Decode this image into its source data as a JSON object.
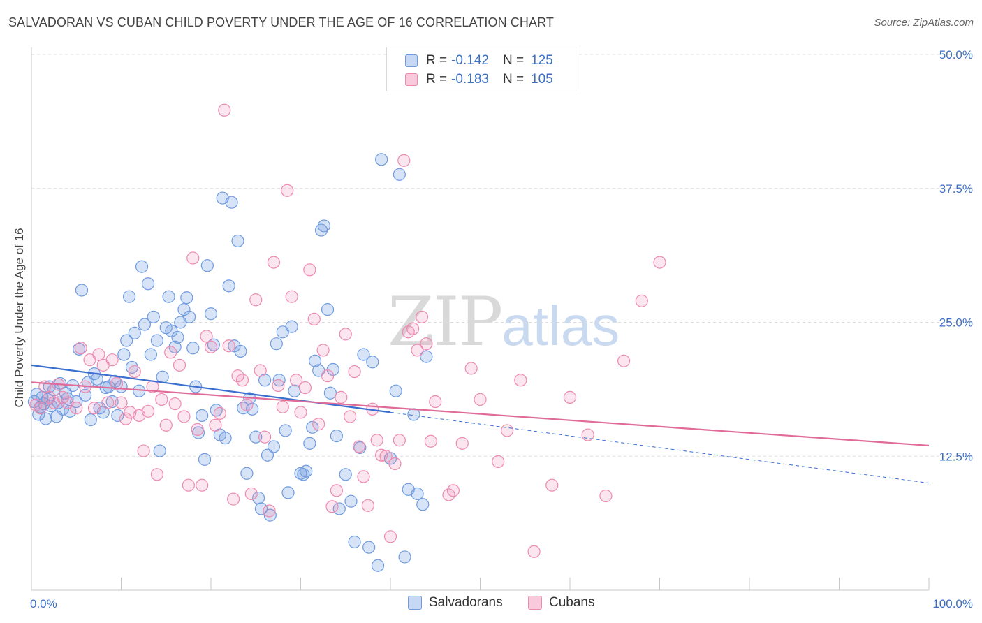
{
  "title": "SALVADORAN VS CUBAN CHILD POVERTY UNDER THE AGE OF 16 CORRELATION CHART",
  "source": "Source: ZipAtlas.com",
  "watermark": {
    "zip": "ZIP",
    "atlas": "atlas"
  },
  "legend": {
    "r_label": "R =",
    "n_label": "N =",
    "rows": [
      {
        "r": "-0.142",
        "n": "125",
        "color": "#6f9be0"
      },
      {
        "r": "-0.183",
        "n": "105",
        "color": "#ee8ab0"
      }
    ]
  },
  "chart_data": {
    "type": "scatter",
    "title": "SALVADORAN VS CUBAN CHILD POVERTY UNDER THE AGE OF 16 CORRELATION CHART",
    "xlabel": "",
    "ylabel": "Child Poverty Under the Age of 16",
    "xlim": [
      0,
      100
    ],
    "ylim": [
      0,
      50
    ],
    "x_tick_labels": [
      "0.0%",
      "100.0%"
    ],
    "y_ticks": [
      12.5,
      25.0,
      37.5,
      50.0
    ],
    "y_tick_labels": [
      "12.5%",
      "25.0%",
      "37.5%",
      "50.0%"
    ],
    "grid": true,
    "legend_position": "top-center",
    "series": [
      {
        "name": "Salvadorans",
        "color": "#6f9be0",
        "trend": {
          "x": [
            0,
            40
          ],
          "y": [
            21.0,
            16.6
          ],
          "dashed_to": [
            100,
            10.0
          ]
        },
        "points": [
          [
            0.3,
            17.6
          ],
          [
            0.6,
            18.3
          ],
          [
            0.8,
            16.4
          ],
          [
            1.0,
            17.1
          ],
          [
            1.2,
            18.0
          ],
          [
            1.4,
            17.4
          ],
          [
            1.6,
            16.0
          ],
          [
            1.8,
            17.8
          ],
          [
            2.0,
            19.0
          ],
          [
            2.2,
            17.2
          ],
          [
            2.5,
            18.7
          ],
          [
            2.8,
            16.2
          ],
          [
            3.0,
            17.5
          ],
          [
            3.2,
            19.3
          ],
          [
            3.5,
            16.9
          ],
          [
            3.8,
            18.4
          ],
          [
            4.0,
            17.9
          ],
          [
            4.3,
            16.7
          ],
          [
            4.6,
            19.1
          ],
          [
            5.0,
            17.6
          ],
          [
            5.3,
            22.5
          ],
          [
            5.6,
            28.0
          ],
          [
            6.0,
            18.2
          ],
          [
            6.3,
            19.4
          ],
          [
            6.6,
            15.9
          ],
          [
            7.0,
            20.2
          ],
          [
            7.3,
            19.7
          ],
          [
            7.6,
            17.0
          ],
          [
            8.0,
            16.6
          ],
          [
            8.3,
            18.9
          ],
          [
            8.6,
            19.0
          ],
          [
            9.0,
            17.6
          ],
          [
            9.3,
            19.5
          ],
          [
            9.6,
            16.3
          ],
          [
            10.0,
            19.0
          ],
          [
            10.3,
            22.0
          ],
          [
            10.6,
            23.3
          ],
          [
            10.9,
            27.4
          ],
          [
            11.2,
            20.8
          ],
          [
            11.5,
            24.0
          ],
          [
            12.0,
            18.6
          ],
          [
            12.3,
            30.2
          ],
          [
            12.6,
            24.8
          ],
          [
            13.0,
            28.6
          ],
          [
            13.3,
            22.0
          ],
          [
            13.6,
            25.5
          ],
          [
            14.0,
            23.3
          ],
          [
            14.3,
            13.0
          ],
          [
            14.6,
            19.9
          ],
          [
            15.0,
            24.5
          ],
          [
            15.3,
            27.4
          ],
          [
            15.6,
            24.2
          ],
          [
            16.0,
            22.7
          ],
          [
            16.3,
            23.6
          ],
          [
            16.6,
            25.0
          ],
          [
            17.0,
            26.2
          ],
          [
            17.3,
            27.3
          ],
          [
            17.6,
            25.5
          ],
          [
            18.0,
            22.6
          ],
          [
            18.3,
            19.0
          ],
          [
            18.6,
            14.7
          ],
          [
            19.0,
            16.3
          ],
          [
            19.3,
            12.2
          ],
          [
            19.6,
            30.3
          ],
          [
            20.0,
            25.8
          ],
          [
            20.3,
            22.9
          ],
          [
            20.6,
            16.8
          ],
          [
            21.0,
            14.5
          ],
          [
            21.3,
            36.6
          ],
          [
            21.6,
            14.2
          ],
          [
            22.0,
            28.4
          ],
          [
            22.3,
            36.2
          ],
          [
            22.6,
            22.8
          ],
          [
            23.0,
            32.6
          ],
          [
            23.3,
            22.3
          ],
          [
            23.6,
            17.0
          ],
          [
            24.0,
            10.9
          ],
          [
            24.3,
            17.9
          ],
          [
            24.6,
            16.9
          ],
          [
            25.0,
            14.3
          ],
          [
            25.3,
            8.6
          ],
          [
            25.6,
            7.6
          ],
          [
            26.0,
            19.6
          ],
          [
            26.3,
            12.6
          ],
          [
            26.6,
            7.0
          ],
          [
            27.0,
            13.4
          ],
          [
            27.3,
            23.0
          ],
          [
            27.6,
            19.6
          ],
          [
            28.0,
            24.1
          ],
          [
            28.3,
            14.9
          ],
          [
            28.6,
            9.1
          ],
          [
            29.0,
            24.6
          ],
          [
            29.3,
            18.6
          ],
          [
            30.0,
            10.9
          ],
          [
            30.3,
            10.8
          ],
          [
            30.6,
            11.1
          ],
          [
            31.0,
            13.7
          ],
          [
            31.3,
            15.2
          ],
          [
            31.6,
            21.4
          ],
          [
            32.0,
            20.5
          ],
          [
            32.3,
            33.6
          ],
          [
            32.6,
            34.0
          ],
          [
            33.0,
            26.2
          ],
          [
            33.3,
            18.4
          ],
          [
            33.6,
            20.6
          ],
          [
            34.0,
            14.4
          ],
          [
            34.3,
            7.6
          ],
          [
            35.0,
            10.8
          ],
          [
            35.6,
            8.3
          ],
          [
            36.0,
            4.5
          ],
          [
            36.6,
            13.3
          ],
          [
            37.0,
            22.0
          ],
          [
            37.6,
            4.0
          ],
          [
            38.0,
            21.3
          ],
          [
            38.6,
            2.3
          ],
          [
            39.0,
            40.2
          ],
          [
            40.0,
            12.3
          ],
          [
            40.6,
            18.6
          ],
          [
            41.0,
            38.8
          ],
          [
            41.6,
            3.1
          ],
          [
            42.0,
            9.4
          ],
          [
            42.6,
            16.4
          ],
          [
            43.0,
            9.0
          ],
          [
            43.6,
            8.0
          ],
          [
            44.0,
            21.8
          ]
        ]
      },
      {
        "name": "Cubans",
        "color": "#ee8ab0",
        "trend": {
          "x": [
            0,
            100
          ],
          "y": [
            19.4,
            13.5
          ]
        },
        "points": [
          [
            0.5,
            17.3
          ],
          [
            1.0,
            17.0
          ],
          [
            1.5,
            19.0
          ],
          [
            2.0,
            18.0
          ],
          [
            2.5,
            17.5
          ],
          [
            3.0,
            19.2
          ],
          [
            3.5,
            18.0
          ],
          [
            4.0,
            17.5
          ],
          [
            5.0,
            17.0
          ],
          [
            5.5,
            22.6
          ],
          [
            6.0,
            19.0
          ],
          [
            6.5,
            21.5
          ],
          [
            7.0,
            17.0
          ],
          [
            7.5,
            22.0
          ],
          [
            8.0,
            21.0
          ],
          [
            8.5,
            17.5
          ],
          [
            9.0,
            21.5
          ],
          [
            9.5,
            19.3
          ],
          [
            10.0,
            17.5
          ],
          [
            10.5,
            16.0
          ],
          [
            11.0,
            16.6
          ],
          [
            11.5,
            20.4
          ],
          [
            12.0,
            16.3
          ],
          [
            12.5,
            13.0
          ],
          [
            13.0,
            16.7
          ],
          [
            13.5,
            19.0
          ],
          [
            14.0,
            10.8
          ],
          [
            14.5,
            17.8
          ],
          [
            15.0,
            15.4
          ],
          [
            15.5,
            22.2
          ],
          [
            16.0,
            17.4
          ],
          [
            16.5,
            21.0
          ],
          [
            17.0,
            16.2
          ],
          [
            17.5,
            9.8
          ],
          [
            18.0,
            31.0
          ],
          [
            18.5,
            15.0
          ],
          [
            19.0,
            9.8
          ],
          [
            19.5,
            23.7
          ],
          [
            20.0,
            22.7
          ],
          [
            20.5,
            15.4
          ],
          [
            21.0,
            16.5
          ],
          [
            21.5,
            44.8
          ],
          [
            22.0,
            22.8
          ],
          [
            22.5,
            8.5
          ],
          [
            23.0,
            20.0
          ],
          [
            23.5,
            19.6
          ],
          [
            24.0,
            17.3
          ],
          [
            24.5,
            9.0
          ],
          [
            25.0,
            27.1
          ],
          [
            25.5,
            20.5
          ],
          [
            26.0,
            14.3
          ],
          [
            26.5,
            7.4
          ],
          [
            27.0,
            30.6
          ],
          [
            27.5,
            19.1
          ],
          [
            28.0,
            17.1
          ],
          [
            28.5,
            37.3
          ],
          [
            29.0,
            27.4
          ],
          [
            29.5,
            19.6
          ],
          [
            30.0,
            16.6
          ],
          [
            30.5,
            18.9
          ],
          [
            31.0,
            29.9
          ],
          [
            31.5,
            25.3
          ],
          [
            32.0,
            15.5
          ],
          [
            32.5,
            22.4
          ],
          [
            33.0,
            20.0
          ],
          [
            33.5,
            7.8
          ],
          [
            34.0,
            9.3
          ],
          [
            34.5,
            18.0
          ],
          [
            35.0,
            23.9
          ],
          [
            35.5,
            16.2
          ],
          [
            36.0,
            20.4
          ],
          [
            36.5,
            13.4
          ],
          [
            37.0,
            10.6
          ],
          [
            37.5,
            7.9
          ],
          [
            38.0,
            16.9
          ],
          [
            38.5,
            14.0
          ],
          [
            39.0,
            12.6
          ],
          [
            39.5,
            12.5
          ],
          [
            40.0,
            5.0
          ],
          [
            40.5,
            11.8
          ],
          [
            41.0,
            14.0
          ],
          [
            41.5,
            40.1
          ],
          [
            42.0,
            24.1
          ],
          [
            42.5,
            24.4
          ],
          [
            43.0,
            22.4
          ],
          [
            43.5,
            25.5
          ],
          [
            44.0,
            23.0
          ],
          [
            44.5,
            13.9
          ],
          [
            45.0,
            17.6
          ],
          [
            46.5,
            8.9
          ],
          [
            47.0,
            9.3
          ],
          [
            48.0,
            13.7
          ],
          [
            49.0,
            20.7
          ],
          [
            50.0,
            17.8
          ],
          [
            52.0,
            12.0
          ],
          [
            53.0,
            14.9
          ],
          [
            54.5,
            19.6
          ],
          [
            56.0,
            3.6
          ],
          [
            58.0,
            9.8
          ],
          [
            60.0,
            18.0
          ],
          [
            62.0,
            14.5
          ],
          [
            64.0,
            8.8
          ],
          [
            66.0,
            21.4
          ],
          [
            68.0,
            27.0
          ],
          [
            70.0,
            30.6
          ]
        ]
      }
    ]
  },
  "bottom_legend": [
    "Salvadorans",
    "Cubans"
  ]
}
